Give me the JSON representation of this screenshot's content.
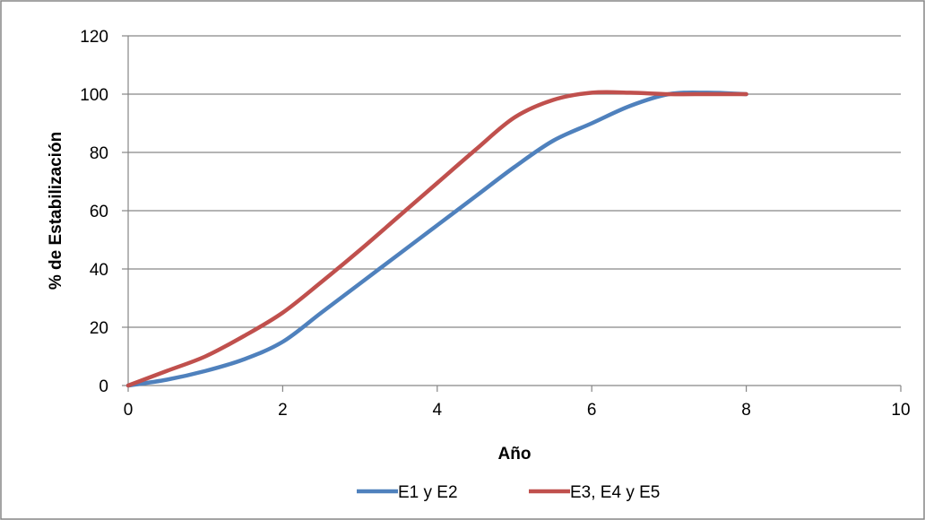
{
  "chart_data": {
    "type": "line",
    "title": "",
    "xlabel": "Año",
    "ylabel": "% de Estabilización",
    "xlim": [
      0,
      10
    ],
    "ylim": [
      0,
      120
    ],
    "x_ticks": [
      "0",
      "2",
      "4",
      "6",
      "8",
      "10"
    ],
    "y_ticks": [
      "0",
      "20",
      "40",
      "60",
      "80",
      "100",
      "120"
    ],
    "grid": "horizontal",
    "legend_position": "bottom",
    "series": [
      {
        "name": "E1 y E2",
        "color": "#4f81bd",
        "x": [
          0,
          0.5,
          1,
          1.5,
          2,
          2.5,
          3,
          3.5,
          4,
          4.5,
          5,
          5.5,
          6,
          6.5,
          7,
          7.5,
          8
        ],
        "y": [
          0,
          2,
          5,
          9,
          15,
          25,
          35,
          45,
          55,
          65,
          75,
          84,
          90,
          96,
          100,
          100.5,
          100
        ]
      },
      {
        "name": "E3, E4 y E5",
        "color": "#c0504d",
        "x": [
          0,
          0.5,
          1,
          1.5,
          2,
          2.5,
          3,
          3.5,
          4,
          4.5,
          5,
          5.5,
          6,
          6.5,
          7,
          7.5,
          8
        ],
        "y": [
          0,
          5,
          10,
          17,
          25,
          35.5,
          46.5,
          58,
          69.5,
          81,
          92,
          98,
          100.5,
          100.5,
          100,
          100,
          100
        ]
      }
    ]
  }
}
